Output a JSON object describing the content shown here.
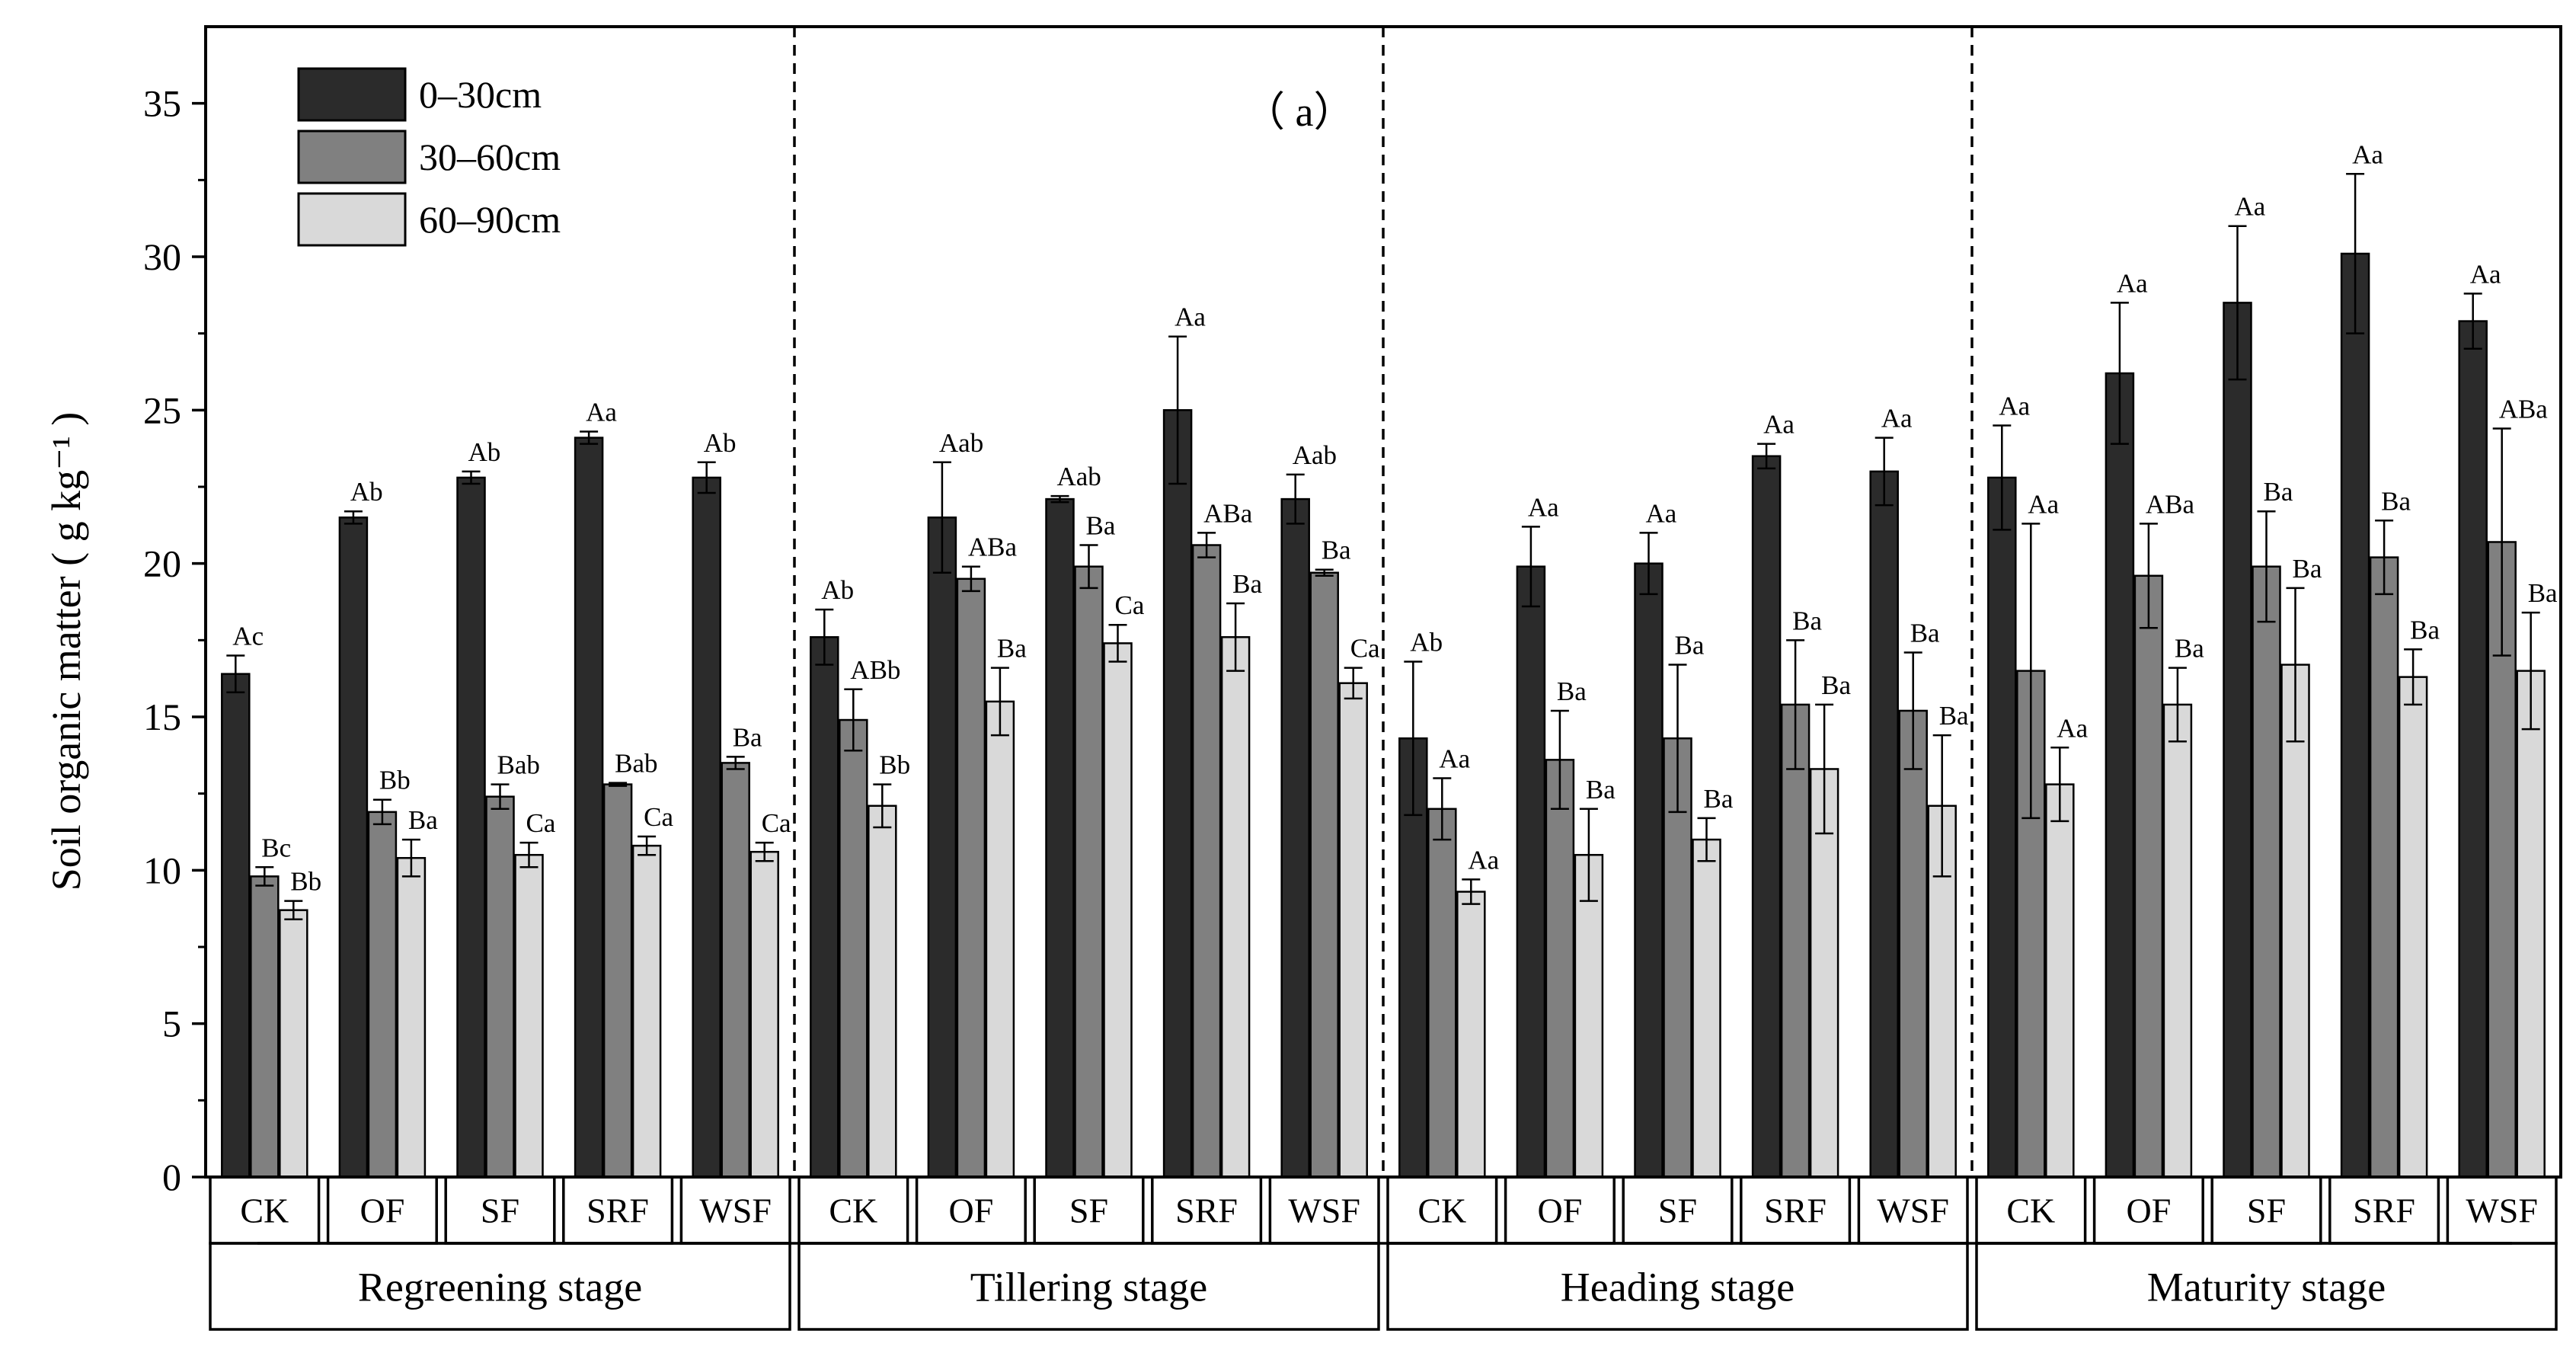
{
  "chart_data": {
    "type": "bar",
    "panel_label": "（ a）",
    "ylabel": "Soil organic matter ( g kg⁻¹ )",
    "ylim": [
      0,
      37.5
    ],
    "yticks": [
      "0",
      "5",
      "10",
      "15",
      "20",
      "25",
      "30",
      "35"
    ],
    "legend": {
      "position": "top-left",
      "entries": [
        {
          "label": "0–30cm",
          "color": "#2b2b2b"
        },
        {
          "label": "30–60cm",
          "color": "#808080"
        },
        {
          "label": "60–90cm",
          "color": "#d9d9d9"
        }
      ]
    },
    "categories": [
      "CK",
      "OF",
      "SF",
      "SRF",
      "WSF"
    ],
    "stages": [
      {
        "name": "Regreening stage",
        "groups": [
          {
            "cat": "CK",
            "bars": [
              {
                "v": 16.4,
                "e": 0.6,
                "lab": "Ac"
              },
              {
                "v": 9.8,
                "e": 0.3,
                "lab": "Bc"
              },
              {
                "v": 8.7,
                "e": 0.3,
                "lab": "Bb"
              }
            ]
          },
          {
            "cat": "OF",
            "bars": [
              {
                "v": 21.5,
                "e": 0.2,
                "lab": "Ab"
              },
              {
                "v": 11.9,
                "e": 0.4,
                "lab": "Bb"
              },
              {
                "v": 10.4,
                "e": 0.6,
                "lab": "Ba"
              }
            ]
          },
          {
            "cat": "SF",
            "bars": [
              {
                "v": 22.8,
                "e": 0.2,
                "lab": "Ab"
              },
              {
                "v": 12.4,
                "e": 0.4,
                "lab": "Bab"
              },
              {
                "v": 10.5,
                "e": 0.4,
                "lab": "Ca"
              }
            ]
          },
          {
            "cat": "SRF",
            "bars": [
              {
                "v": 24.1,
                "e": 0.2,
                "lab": "Aa"
              },
              {
                "v": 12.8,
                "e": 0.05,
                "lab": "Bab"
              },
              {
                "v": 10.8,
                "e": 0.3,
                "lab": "Ca"
              }
            ]
          },
          {
            "cat": "WSF",
            "bars": [
              {
                "v": 22.8,
                "e": 0.5,
                "lab": "Ab"
              },
              {
                "v": 13.5,
                "e": 0.2,
                "lab": "Ba"
              },
              {
                "v": 10.6,
                "e": 0.3,
                "lab": "Ca"
              }
            ]
          }
        ]
      },
      {
        "name": "Tillering stage",
        "groups": [
          {
            "cat": "CK",
            "bars": [
              {
                "v": 17.6,
                "e": 0.9,
                "lab": "Ab"
              },
              {
                "v": 14.9,
                "e": 1.0,
                "lab": "ABb"
              },
              {
                "v": 12.1,
                "e": 0.7,
                "lab": "Bb"
              }
            ]
          },
          {
            "cat": "OF",
            "bars": [
              {
                "v": 21.5,
                "e": 1.8,
                "lab": "Aab"
              },
              {
                "v": 19.5,
                "e": 0.4,
                "lab": "ABa"
              },
              {
                "v": 15.5,
                "e": 1.1,
                "lab": "Ba"
              }
            ]
          },
          {
            "cat": "SF",
            "bars": [
              {
                "v": 22.1,
                "e": 0.1,
                "lab": "Aab"
              },
              {
                "v": 19.9,
                "e": 0.7,
                "lab": "Ba"
              },
              {
                "v": 17.4,
                "e": 0.6,
                "lab": "Ca"
              }
            ]
          },
          {
            "cat": "SRF",
            "bars": [
              {
                "v": 25.0,
                "e": 2.4,
                "lab": "Aa"
              },
              {
                "v": 20.6,
                "e": 0.4,
                "lab": "ABa"
              },
              {
                "v": 17.6,
                "e": 1.1,
                "lab": "Ba"
              }
            ]
          },
          {
            "cat": "WSF",
            "bars": [
              {
                "v": 22.1,
                "e": 0.8,
                "lab": "Aab"
              },
              {
                "v": 19.7,
                "e": 0.1,
                "lab": "Ba"
              },
              {
                "v": 16.1,
                "e": 0.5,
                "lab": "Ca"
              }
            ]
          }
        ]
      },
      {
        "name": "Heading stage",
        "groups": [
          {
            "cat": "CK",
            "bars": [
              {
                "v": 14.3,
                "e": 2.5,
                "lab": "Ab"
              },
              {
                "v": 12.0,
                "e": 1.0,
                "lab": "Aa"
              },
              {
                "v": 9.3,
                "e": 0.4,
                "lab": "Aa"
              }
            ]
          },
          {
            "cat": "OF",
            "bars": [
              {
                "v": 19.9,
                "e": 1.3,
                "lab": "Aa"
              },
              {
                "v": 13.6,
                "e": 1.6,
                "lab": "Ba"
              },
              {
                "v": 10.5,
                "e": 1.5,
                "lab": "Ba"
              }
            ]
          },
          {
            "cat": "SF",
            "bars": [
              {
                "v": 20.0,
                "e": 1.0,
                "lab": "Aa"
              },
              {
                "v": 14.3,
                "e": 2.4,
                "lab": "Ba"
              },
              {
                "v": 11.0,
                "e": 0.7,
                "lab": "Ba"
              }
            ]
          },
          {
            "cat": "SRF",
            "bars": [
              {
                "v": 23.5,
                "e": 0.4,
                "lab": "Aa"
              },
              {
                "v": 15.4,
                "e": 2.1,
                "lab": "Ba"
              },
              {
                "v": 13.3,
                "e": 2.1,
                "lab": "Ba"
              }
            ]
          },
          {
            "cat": "WSF",
            "bars": [
              {
                "v": 23.0,
                "e": 1.1,
                "lab": "Aa"
              },
              {
                "v": 15.2,
                "e": 1.9,
                "lab": "Ba"
              },
              {
                "v": 12.1,
                "e": 2.3,
                "lab": "Ba"
              }
            ]
          }
        ]
      },
      {
        "name": "Maturity stage",
        "groups": [
          {
            "cat": "CK",
            "bars": [
              {
                "v": 22.8,
                "e": 1.7,
                "lab": "Aa"
              },
              {
                "v": 16.5,
                "e": 4.8,
                "lab": "Aa"
              },
              {
                "v": 12.8,
                "e": 1.2,
                "lab": "Aa"
              }
            ]
          },
          {
            "cat": "OF",
            "bars": [
              {
                "v": 26.2,
                "e": 2.3,
                "lab": "Aa"
              },
              {
                "v": 19.6,
                "e": 1.7,
                "lab": "ABa"
              },
              {
                "v": 15.4,
                "e": 1.2,
                "lab": "Ba"
              }
            ]
          },
          {
            "cat": "SF",
            "bars": [
              {
                "v": 28.5,
                "e": 2.5,
                "lab": "Aa"
              },
              {
                "v": 19.9,
                "e": 1.8,
                "lab": "Ba"
              },
              {
                "v": 16.7,
                "e": 2.5,
                "lab": "Ba"
              }
            ]
          },
          {
            "cat": "SRF",
            "bars": [
              {
                "v": 30.1,
                "e": 2.6,
                "lab": "Aa"
              },
              {
                "v": 20.2,
                "e": 1.2,
                "lab": "Ba"
              },
              {
                "v": 16.3,
                "e": 0.9,
                "lab": "Ba"
              }
            ]
          },
          {
            "cat": "WSF",
            "bars": [
              {
                "v": 27.9,
                "e": 0.9,
                "lab": "Aa"
              },
              {
                "v": 20.7,
                "e": 3.7,
                "lab": "ABa"
              },
              {
                "v": 16.5,
                "e": 1.9,
                "lab": "Ba"
              }
            ]
          }
        ]
      }
    ]
  }
}
